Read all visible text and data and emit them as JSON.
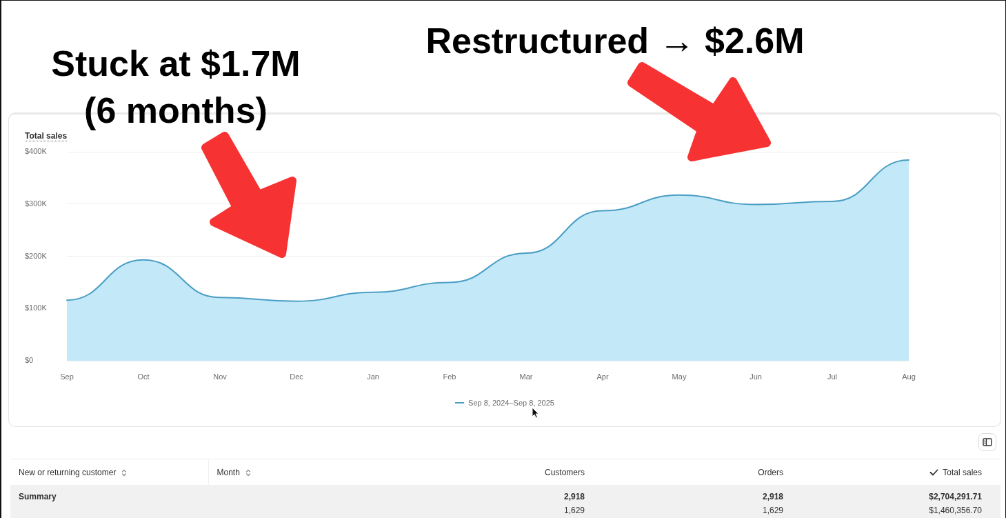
{
  "chart_data": [
    {
      "type": "area",
      "title": "Total sales",
      "annotations": [
        "Stuck at $1.7M (6 months)",
        "Restructured → $2.6M"
      ],
      "categories": [
        "Sep",
        "Oct",
        "Nov",
        "Dec",
        "Jan",
        "Feb",
        "Mar",
        "Apr",
        "May",
        "Jun",
        "Jul",
        "Aug"
      ],
      "series": [
        {
          "name": "Sep 8, 2024–Sep 8, 2025",
          "color": "#4a9ec3",
          "values": [
            116000,
            193000,
            121000,
            114000,
            131000,
            150000,
            206000,
            287000,
            317000,
            299000,
            305000,
            384000
          ]
        }
      ],
      "ylim": [
        0,
        400000
      ],
      "yticks": [
        {
          "value": 0,
          "label": "$0"
        },
        {
          "value": 100000,
          "label": "$100K"
        },
        {
          "value": 200000,
          "label": "$200K"
        },
        {
          "value": 300000,
          "label": "$300K"
        },
        {
          "value": 400000,
          "label": "$400K"
        }
      ],
      "grid": "y",
      "legend": "bottom"
    },
    {
      "type": "other",
      "categories": [
        "New or returning customer",
        "Month",
        "Customers",
        "Orders",
        "Total sales"
      ],
      "cell_labels": [
        [
          "Summary",
          null,
          "2,918",
          "2,918",
          "$2,704,291.71"
        ],
        [
          null,
          null,
          "1,629",
          "1,629",
          "$1,460,356.70"
        ]
      ]
    }
  ]
}
